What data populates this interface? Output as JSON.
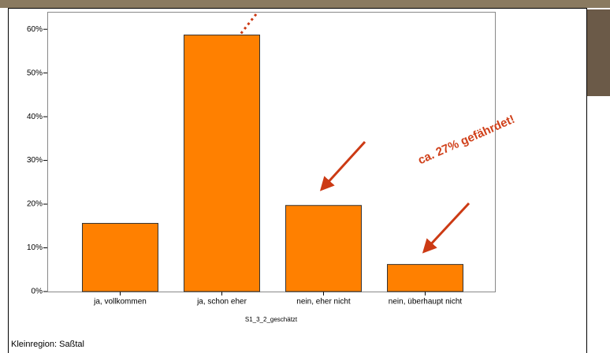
{
  "chart_data": {
    "type": "bar",
    "categories": [
      "ja, vollkommen",
      "ja, schon eher",
      "nein, eher nicht",
      "nein, überhaupt nicht"
    ],
    "values": [
      15.6,
      58.7,
      19.7,
      6.2
    ],
    "color": "#ff8000",
    "x_label": "S1_3_2_geschätzt",
    "ylim": [
      0,
      64
    ],
    "yticks": [
      {
        "value": 0,
        "label": "0%"
      },
      {
        "value": 10,
        "label": "10%"
      },
      {
        "value": 20,
        "label": "20%"
      },
      {
        "value": 30,
        "label": "30%"
      },
      {
        "value": 40,
        "label": "40%"
      },
      {
        "value": 50,
        "label": "50%"
      },
      {
        "value": 60,
        "label": "60%"
      }
    ],
    "annotation": "ca. 27% gefährdet!",
    "footer": "Kleinregion: Saßtal"
  }
}
